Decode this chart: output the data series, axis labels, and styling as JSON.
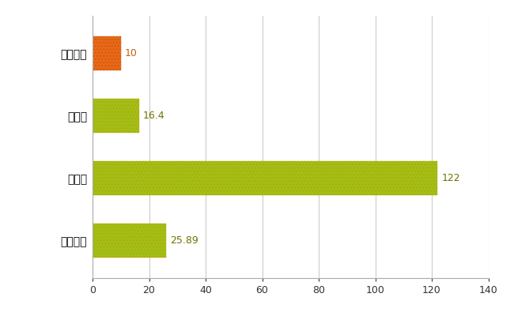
{
  "categories": [
    "みやき町",
    "県平均",
    "県最大",
    "全国平均"
  ],
  "values": [
    10,
    16.4,
    122,
    25.89
  ],
  "bar_colors": [
    "#e8691a",
    "#9fc01a",
    "#9fc01a",
    "#9fc01a"
  ],
  "bar_edgecolors": [
    "#d4580a",
    "#b8a800",
    "#b8a800",
    "#b8a800"
  ],
  "value_labels": [
    "10",
    "16.4",
    "122",
    "25.89"
  ],
  "value_colors": [
    "#c06010",
    "#707000",
    "#707000",
    "#707000"
  ],
  "xlim": [
    0,
    140
  ],
  "xticks": [
    0,
    20,
    40,
    60,
    80,
    100,
    120,
    140
  ],
  "grid_color": "#cccccc",
  "background_color": "#ffffff",
  "label_fontsize": 10,
  "tick_fontsize": 9
}
